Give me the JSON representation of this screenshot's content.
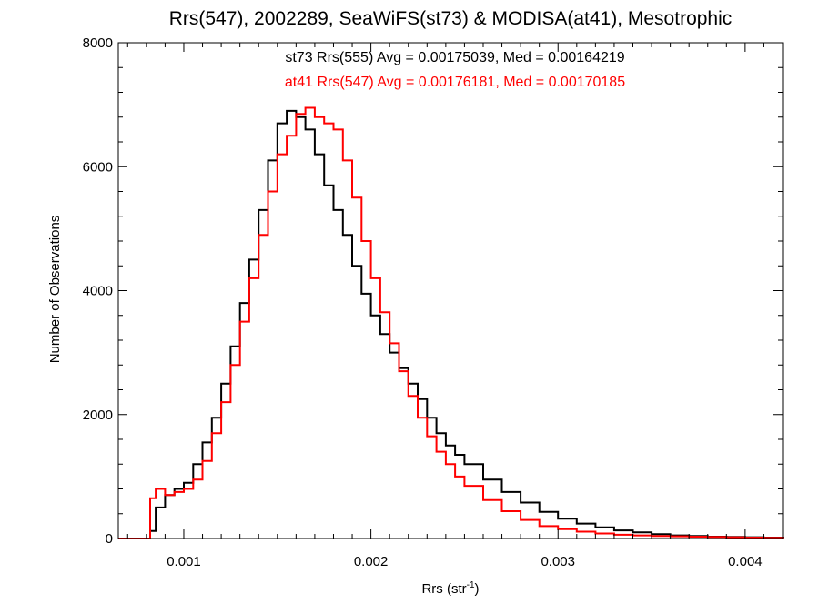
{
  "chart_data": {
    "type": "line",
    "title": "Rrs(547), 2002289, SeaWiFS(st73) & MODISA(at41), Mesotrophic",
    "xlabel_base": "Rrs (str",
    "xlabel_sup": "-1",
    "xlabel_close": ")",
    "ylabel": "Number of Observations",
    "xlim": [
      0.00065,
      0.0042
    ],
    "ylim": [
      0,
      8000
    ],
    "x_ticks": [
      {
        "value": 0.001,
        "label": "0.001"
      },
      {
        "value": 0.002,
        "label": "0.002"
      },
      {
        "value": 0.003,
        "label": "0.003"
      },
      {
        "value": 0.004,
        "label": "0.004"
      }
    ],
    "y_ticks": [
      {
        "value": 0,
        "label": "0"
      },
      {
        "value": 2000,
        "label": "2000"
      },
      {
        "value": 4000,
        "label": "4000"
      },
      {
        "value": 6000,
        "label": "6000"
      },
      {
        "value": 8000,
        "label": "8000"
      }
    ],
    "grid": false,
    "annotations": [
      {
        "text": "st73 Rrs(555) Avg = 0.00175039, Med = 0.00164219",
        "color": "#000000"
      },
      {
        "text": "at41 Rrs(547) Avg = 0.00176181, Med = 0.00170185",
        "color": "#ff0000"
      }
    ],
    "series": [
      {
        "color": "#000000",
        "x": [
          0.00065,
          0.0008,
          0.00082,
          0.00085,
          0.0009,
          0.00095,
          0.001,
          0.00105,
          0.0011,
          0.00115,
          0.0012,
          0.00125,
          0.0013,
          0.00135,
          0.0014,
          0.00145,
          0.0015,
          0.00155,
          0.0016,
          0.00165,
          0.0017,
          0.00175,
          0.0018,
          0.00185,
          0.0019,
          0.00195,
          0.002,
          0.00205,
          0.0021,
          0.00215,
          0.0022,
          0.00225,
          0.0023,
          0.00235,
          0.0024,
          0.00245,
          0.0025,
          0.0026,
          0.0027,
          0.0028,
          0.0029,
          0.003,
          0.0031,
          0.0032,
          0.0033,
          0.0034,
          0.0035,
          0.0036,
          0.0037,
          0.0038,
          0.0039,
          0.004,
          0.0041,
          0.0042
        ],
        "y": [
          0,
          0,
          120,
          500,
          700,
          800,
          900,
          1200,
          1550,
          1950,
          2500,
          3100,
          3800,
          4500,
          5300,
          6100,
          6700,
          6900,
          6800,
          6600,
          6200,
          5700,
          5300,
          4900,
          4400,
          3950,
          3600,
          3300,
          3000,
          2750,
          2500,
          2250,
          1950,
          1700,
          1500,
          1350,
          1200,
          950,
          750,
          580,
          430,
          320,
          240,
          180,
          130,
          100,
          70,
          50,
          40,
          30,
          25,
          20,
          15,
          10
        ]
      },
      {
        "color": "#ff0000",
        "x": [
          0.00065,
          0.0008,
          0.00082,
          0.00085,
          0.0009,
          0.00095,
          0.001,
          0.00105,
          0.0011,
          0.00115,
          0.0012,
          0.00125,
          0.0013,
          0.00135,
          0.0014,
          0.00145,
          0.0015,
          0.00155,
          0.0016,
          0.00165,
          0.0017,
          0.00175,
          0.0018,
          0.00185,
          0.0019,
          0.00195,
          0.002,
          0.00205,
          0.0021,
          0.00215,
          0.0022,
          0.00225,
          0.0023,
          0.00235,
          0.0024,
          0.00245,
          0.0025,
          0.0026,
          0.0027,
          0.0028,
          0.0029,
          0.003,
          0.0031,
          0.0032,
          0.0033,
          0.0034,
          0.0035,
          0.0036,
          0.0037,
          0.0038,
          0.0039,
          0.004,
          0.0041,
          0.0042
        ],
        "y": [
          0,
          0,
          650,
          800,
          700,
          750,
          800,
          950,
          1250,
          1700,
          2200,
          2800,
          3500,
          4200,
          4900,
          5600,
          6200,
          6500,
          6850,
          6950,
          6800,
          6700,
          6600,
          6100,
          5500,
          4800,
          4200,
          3650,
          3150,
          2700,
          2300,
          1950,
          1650,
          1400,
          1200,
          1000,
          850,
          620,
          440,
          300,
          200,
          150,
          110,
          80,
          60,
          50,
          40,
          35,
          30,
          25,
          20,
          15,
          10,
          5
        ]
      }
    ]
  }
}
